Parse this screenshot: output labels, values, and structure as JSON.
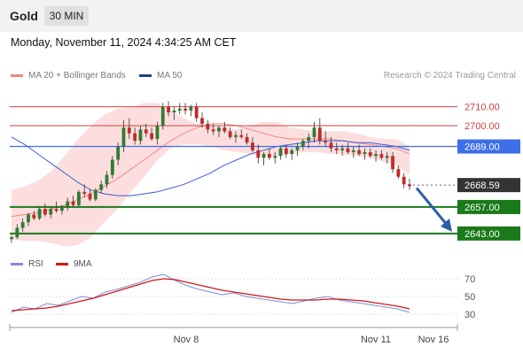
{
  "header": {
    "title": "Gold",
    "timeframe": "30 MIN"
  },
  "datetime": "Monday, November 11, 2024 4:34:25 AM CET",
  "legend": {
    "ma20_label": "MA 20 + Bollinger Bands",
    "ma50_label": "MA 50",
    "credit": "Research © 2024 Trading Central",
    "rsi_label": "RSI",
    "ma9_label": "9MA"
  },
  "colors": {
    "bull": "#2e7d32",
    "bear": "#c62828",
    "ma20": "#f08a80",
    "band": "#fcdede",
    "ma50": "#3b5bd6",
    "resistance": "#d04040",
    "pivot": "#3d6fe8",
    "support": "#1a7a1a",
    "last": "#333333",
    "arrow": "#2b5fa8",
    "rsi": "#7b8fe0",
    "rsi_ma": "#d01818"
  },
  "chart_data": {
    "type": "candlestick",
    "price_axis": {
      "ylim": [
        2634.5,
        2722
      ]
    },
    "x_labels": [
      "Nov 8",
      "Nov 11",
      "Nov 16"
    ],
    "levels": [
      {
        "value": 2710.0,
        "label": "2710.00",
        "kind": "resistance"
      },
      {
        "value": 2700.0,
        "label": "2700.00",
        "kind": "resistance"
      },
      {
        "value": 2689.0,
        "label": "2689.00",
        "kind": "pivot"
      },
      {
        "value": 2668.59,
        "label": "2668.59",
        "kind": "last"
      },
      {
        "value": 2657.0,
        "label": "2657.00",
        "kind": "support"
      },
      {
        "value": 2643.0,
        "label": "2643.00",
        "kind": "support"
      }
    ],
    "candles": [
      [
        2640,
        2642,
        2638,
        2641
      ],
      [
        2641,
        2648,
        2640,
        2646
      ],
      [
        2646,
        2651,
        2644,
        2649
      ],
      [
        2649,
        2654,
        2647,
        2653
      ],
      [
        2653,
        2655,
        2650,
        2651
      ],
      [
        2651,
        2657,
        2650,
        2656
      ],
      [
        2656,
        2659,
        2652,
        2653
      ],
      [
        2653,
        2657,
        2651,
        2656
      ],
      [
        2656,
        2660,
        2654,
        2655
      ],
      [
        2655,
        2658,
        2653,
        2657
      ],
      [
        2657,
        2662,
        2655,
        2660
      ],
      [
        2660,
        2663,
        2657,
        2658
      ],
      [
        2658,
        2666,
        2657,
        2665
      ],
      [
        2665,
        2669,
        2662,
        2664
      ],
      [
        2664,
        2666,
        2660,
        2661
      ],
      [
        2661,
        2667,
        2660,
        2666
      ],
      [
        2666,
        2671,
        2664,
        2669
      ],
      [
        2669,
        2676,
        2667,
        2674
      ],
      [
        2674,
        2684,
        2672,
        2682
      ],
      [
        2682,
        2691,
        2679,
        2689
      ],
      [
        2689,
        2703,
        2686,
        2699
      ],
      [
        2699,
        2704,
        2693,
        2696
      ],
      [
        2696,
        2699,
        2690,
        2692
      ],
      [
        2692,
        2700,
        2690,
        2698
      ],
      [
        2698,
        2701,
        2694,
        2696
      ],
      [
        2696,
        2699,
        2692,
        2693
      ],
      [
        2693,
        2702,
        2690,
        2700
      ],
      [
        2700,
        2712,
        2698,
        2710
      ],
      [
        2710,
        2713,
        2705,
        2707
      ],
      [
        2707,
        2710,
        2703,
        2708
      ],
      [
        2708,
        2712,
        2706,
        2709
      ],
      [
        2709,
        2712,
        2706,
        2708
      ],
      [
        2708,
        2711,
        2705,
        2710
      ],
      [
        2710,
        2712,
        2702,
        2704
      ],
      [
        2704,
        2707,
        2699,
        2701
      ],
      [
        2701,
        2703,
        2696,
        2698
      ],
      [
        2698,
        2701,
        2695,
        2697
      ],
      [
        2697,
        2700,
        2694,
        2699
      ],
      [
        2699,
        2702,
        2696,
        2697
      ],
      [
        2697,
        2699,
        2693,
        2694
      ],
      [
        2694,
        2697,
        2691,
        2695
      ],
      [
        2695,
        2698,
        2693,
        2694
      ],
      [
        2694,
        2696,
        2690,
        2691
      ],
      [
        2691,
        2694,
        2686,
        2687
      ],
      [
        2687,
        2690,
        2680,
        2683
      ],
      [
        2683,
        2686,
        2679,
        2685
      ],
      [
        2685,
        2688,
        2682,
        2683
      ],
      [
        2683,
        2686,
        2680,
        2684
      ],
      [
        2684,
        2689,
        2682,
        2688
      ],
      [
        2688,
        2690,
        2683,
        2685
      ],
      [
        2685,
        2688,
        2682,
        2687
      ],
      [
        2687,
        2691,
        2684,
        2689
      ],
      [
        2689,
        2693,
        2687,
        2692
      ],
      [
        2692,
        2696,
        2688,
        2694
      ],
      [
        2694,
        2702,
        2691,
        2699
      ],
      [
        2699,
        2704,
        2690,
        2692
      ],
      [
        2692,
        2697,
        2689,
        2691
      ],
      [
        2691,
        2694,
        2686,
        2688
      ],
      [
        2688,
        2691,
        2685,
        2687
      ],
      [
        2687,
        2690,
        2684,
        2688
      ],
      [
        2688,
        2691,
        2685,
        2686
      ],
      [
        2686,
        2689,
        2683,
        2687
      ],
      [
        2687,
        2690,
        2684,
        2685
      ],
      [
        2685,
        2688,
        2682,
        2686
      ],
      [
        2686,
        2688,
        2683,
        2684
      ],
      [
        2684,
        2687,
        2681,
        2685
      ],
      [
        2685,
        2687,
        2682,
        2683
      ],
      [
        2683,
        2686,
        2680,
        2684
      ],
      [
        2684,
        2686,
        2675,
        2677
      ],
      [
        2677,
        2679,
        2672,
        2673
      ],
      [
        2673,
        2675,
        2667,
        2669
      ],
      [
        2669,
        2672,
        2666,
        2668
      ]
    ],
    "ma20": [
      2652,
      2653,
      2654,
      2656,
      2658,
      2661,
      2664,
      2668,
      2672,
      2677,
      2682,
      2687,
      2692,
      2696,
      2699,
      2701,
      2701,
      2700,
      2698,
      2696,
      2694,
      2693,
      2693,
      2693,
      2693,
      2692,
      2691,
      2690,
      2689,
      2688,
      2685
    ],
    "band_upper": [
      2666,
      2668,
      2671,
      2676,
      2684,
      2693,
      2700,
      2706,
      2709,
      2710,
      2712,
      2712,
      2708,
      2704,
      2701,
      2700,
      2699,
      2698,
      2700,
      2702,
      2702,
      2699,
      2698,
      2697,
      2697,
      2697,
      2696,
      2694,
      2693,
      2693,
      2689
    ],
    "band_lower": [
      2640,
      2639,
      2639,
      2638,
      2636,
      2637,
      2641,
      2649,
      2656,
      2665,
      2673,
      2682,
      2688,
      2690,
      2690,
      2689,
      2687,
      2686,
      2685,
      2684,
      2684,
      2685,
      2686,
      2686,
      2685,
      2685,
      2684,
      2683,
      2681,
      2679,
      2674
    ],
    "ma50": [
      2694,
      2690,
      2685,
      2680,
      2675,
      2670,
      2666,
      2664,
      2663,
      2663,
      2664,
      2665,
      2667,
      2669,
      2672,
      2675,
      2679,
      2682,
      2685,
      2687,
      2689,
      2690,
      2691,
      2692,
      2692,
      2692,
      2691,
      2691,
      2690,
      2689,
      2687
    ],
    "forecast_end": 2643,
    "rsi": {
      "ticks": [
        30,
        50,
        70
      ],
      "ylim": [
        20,
        80
      ],
      "rsi": [
        32,
        38,
        36,
        42,
        40,
        45,
        50,
        48,
        55,
        58,
        62,
        66,
        72,
        75,
        68,
        62,
        58,
        55,
        52,
        54,
        50,
        48,
        46,
        44,
        42,
        45,
        48,
        50,
        46,
        44,
        42,
        40,
        38,
        36,
        32
      ],
      "ma9": [
        34,
        35,
        36,
        37,
        39,
        42,
        45,
        48,
        52,
        56,
        60,
        64,
        68,
        70,
        69,
        66,
        63,
        60,
        57,
        55,
        53,
        51,
        49,
        47,
        46,
        46,
        46,
        47,
        47,
        46,
        45,
        43,
        41,
        39,
        36
      ]
    }
  }
}
